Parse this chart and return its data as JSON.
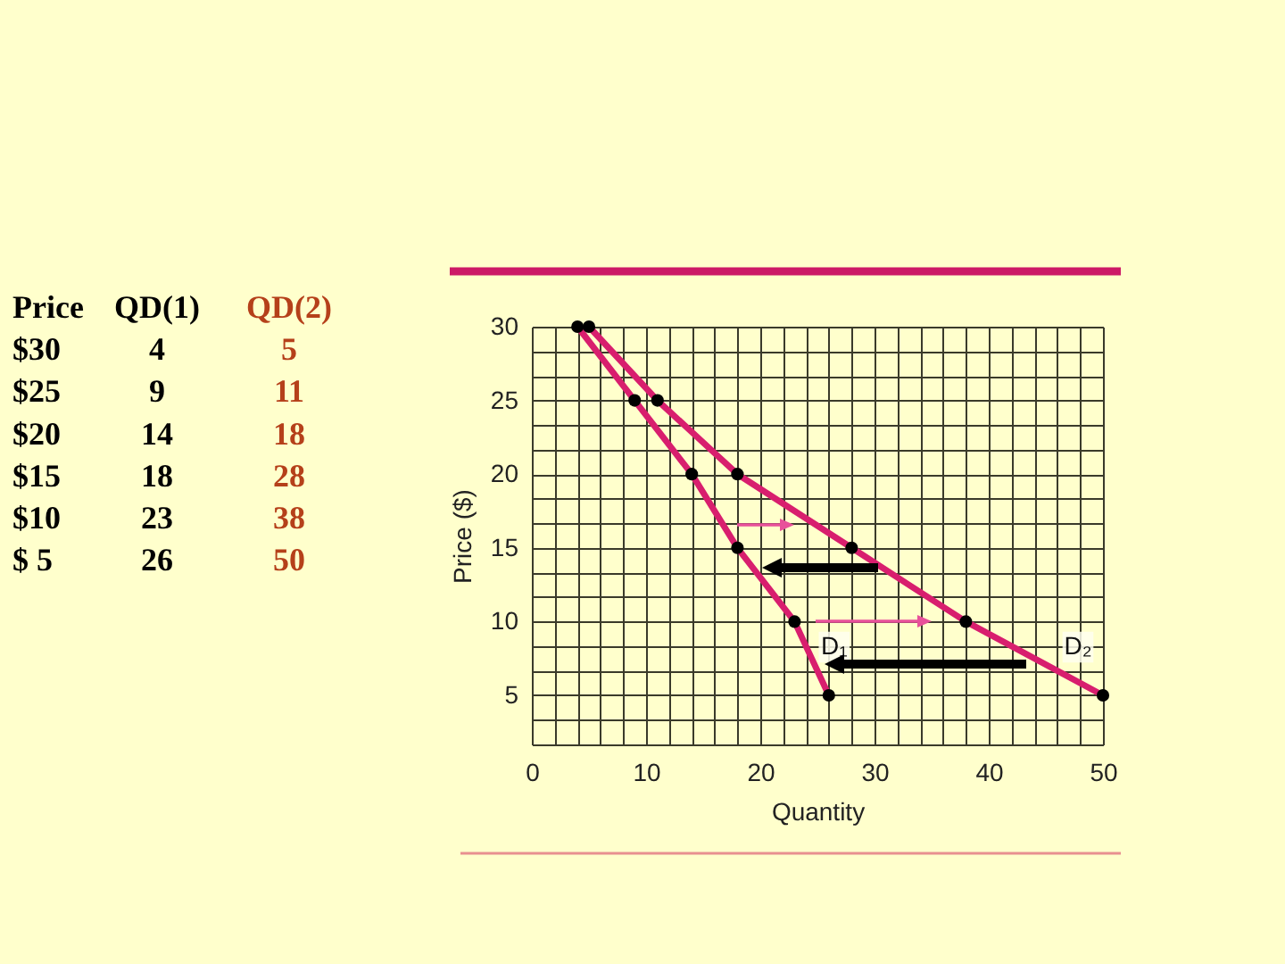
{
  "chart_data": {
    "type": "line",
    "xlabel": "Quantity",
    "ylabel": "Price ($)",
    "annotations": [
      "Price",
      "QD(1)",
      "QD(2)",
      "$30",
      "4",
      "5",
      "$25",
      "9",
      "11",
      "$20",
      "14",
      "18",
      "$15",
      "18",
      "28",
      "$10",
      "23",
      "38",
      "$ 5",
      "26",
      "50"
    ],
    "series": [
      {
        "name": "D₁",
        "color": "#d81e6e",
        "x": [
          4,
          9,
          14,
          18,
          23,
          26
        ],
        "values": [
          30,
          25,
          20,
          15,
          10,
          5
        ]
      },
      {
        "name": "D₂",
        "color": "#d81e6e",
        "x": [
          5,
          11,
          18,
          28,
          38,
          50
        ],
        "values": [
          30,
          25,
          20,
          15,
          10,
          5
        ]
      }
    ],
    "xlim": [
      0,
      50
    ],
    "ylim": [
      1.67,
      30
    ],
    "xticks": [
      0,
      {
        "value": 2,
        "label": null
      },
      {
        "value": 4,
        "label": null
      },
      {
        "value": 6,
        "label": null
      },
      {
        "value": 8,
        "label": null
      },
      10,
      {
        "value": 12,
        "label": null
      },
      {
        "value": 14,
        "label": null
      },
      {
        "value": 16,
        "label": null
      },
      {
        "value": 18,
        "label": null
      },
      20,
      {
        "value": 22,
        "label": null
      },
      {
        "value": 24,
        "label": null
      },
      {
        "value": 26,
        "label": null
      },
      {
        "value": 28,
        "label": null
      },
      30,
      {
        "value": 32,
        "label": null
      },
      {
        "value": 34,
        "label": null
      },
      {
        "value": 36,
        "label": null
      },
      {
        "value": 38,
        "label": null
      },
      40,
      {
        "value": 42,
        "label": null
      },
      {
        "value": 44,
        "label": null
      },
      {
        "value": 46,
        "label": null
      },
      {
        "value": 48,
        "label": null
      },
      50
    ],
    "yticks": [
      {
        "value": 1.67,
        "label": null
      },
      {
        "value": 3.33,
        "label": null
      },
      5,
      {
        "value": 6.67,
        "label": null
      },
      {
        "value": 8.33,
        "label": null
      },
      10,
      {
        "value": 11.67,
        "label": null
      },
      {
        "value": 13.33,
        "label": null
      },
      15,
      {
        "value": 16.67,
        "label": null
      },
      {
        "value": 18.33,
        "label": null
      },
      20,
      {
        "value": 21.67,
        "label": null
      },
      {
        "value": 23.33,
        "label": null
      },
      25,
      {
        "value": 26.67,
        "label": null
      },
      {
        "value": 28.33,
        "label": null
      },
      30
    ],
    "grid": true,
    "marker": "circle",
    "line_style": "solid"
  }
}
